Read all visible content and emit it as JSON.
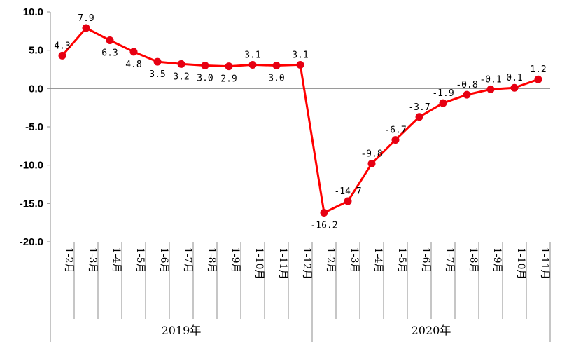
{
  "chart_data": {
    "type": "line",
    "title": "",
    "xlabel": "",
    "ylabel": "",
    "ylim": [
      -20,
      10
    ],
    "yticks": [
      10.0,
      5.0,
      0.0,
      -5.0,
      -10.0,
      -15.0,
      -20.0
    ],
    "ytick_labels": [
      "10.0",
      "5.0",
      "0.0",
      "-5.0",
      "-10.0",
      "-15.0",
      "-20.0"
    ],
    "grid": false,
    "legend": "none",
    "line_color": "#ff0000",
    "marker_color": "#e60012",
    "groups": [
      {
        "name": "2019年",
        "categories": [
          "1-2月",
          "1-3月",
          "1-4月",
          "1-5月",
          "1-6月",
          "1-7月",
          "1-8月",
          "1-9月",
          "1-10月",
          "1-11月",
          "1-12月"
        ],
        "values": [
          4.3,
          7.9,
          6.3,
          4.8,
          3.5,
          3.2,
          3.0,
          2.9,
          3.1,
          3.0,
          3.1
        ],
        "labels": [
          "4.3",
          "7.9",
          "6.3",
          "4.8",
          "3.5",
          "3.2",
          "3.0",
          "2.9",
          "3.1",
          "3.0",
          "3.1"
        ]
      },
      {
        "name": "2020年",
        "categories": [
          "1-2月",
          "1-3月",
          "1-4月",
          "1-5月",
          "1-6月",
          "1-7月",
          "1-8月",
          "1-9月",
          "1-10月",
          "1-11月"
        ],
        "values": [
          -16.2,
          -14.7,
          -9.8,
          -6.7,
          -3.7,
          -1.9,
          -0.8,
          -0.1,
          0.1,
          1.2
        ],
        "labels": [
          "-16.2",
          "-14.7",
          "-9.8",
          "-6.7",
          "-3.7",
          "-1.9",
          "-0.8",
          "-0.1",
          "0.1",
          "1.2"
        ]
      }
    ]
  }
}
